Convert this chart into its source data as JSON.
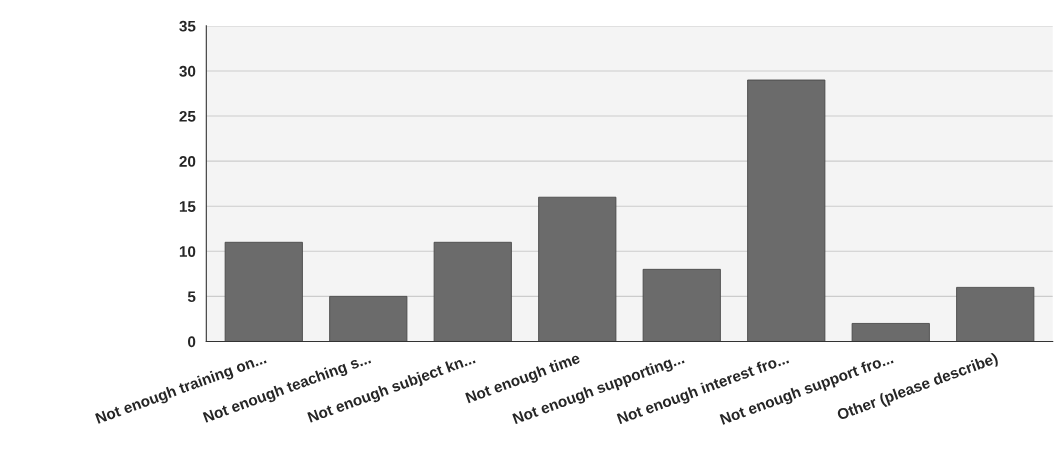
{
  "chart_data": {
    "type": "bar",
    "categories": [
      "Not enough training on...",
      "Not enough teaching s...",
      "Not enough subject kn...",
      "Not enough time",
      "Not enough supporting...",
      "Not enough interest fro...",
      "Not enough support fro...",
      "Other (please describe)"
    ],
    "values": [
      11,
      5,
      11,
      16,
      8,
      29,
      2,
      6
    ],
    "color": "#6b6b6b",
    "ylim": [
      0,
      35
    ],
    "yticks": [
      0,
      5,
      10,
      15,
      20,
      25,
      30,
      35
    ],
    "grid": "y"
  }
}
